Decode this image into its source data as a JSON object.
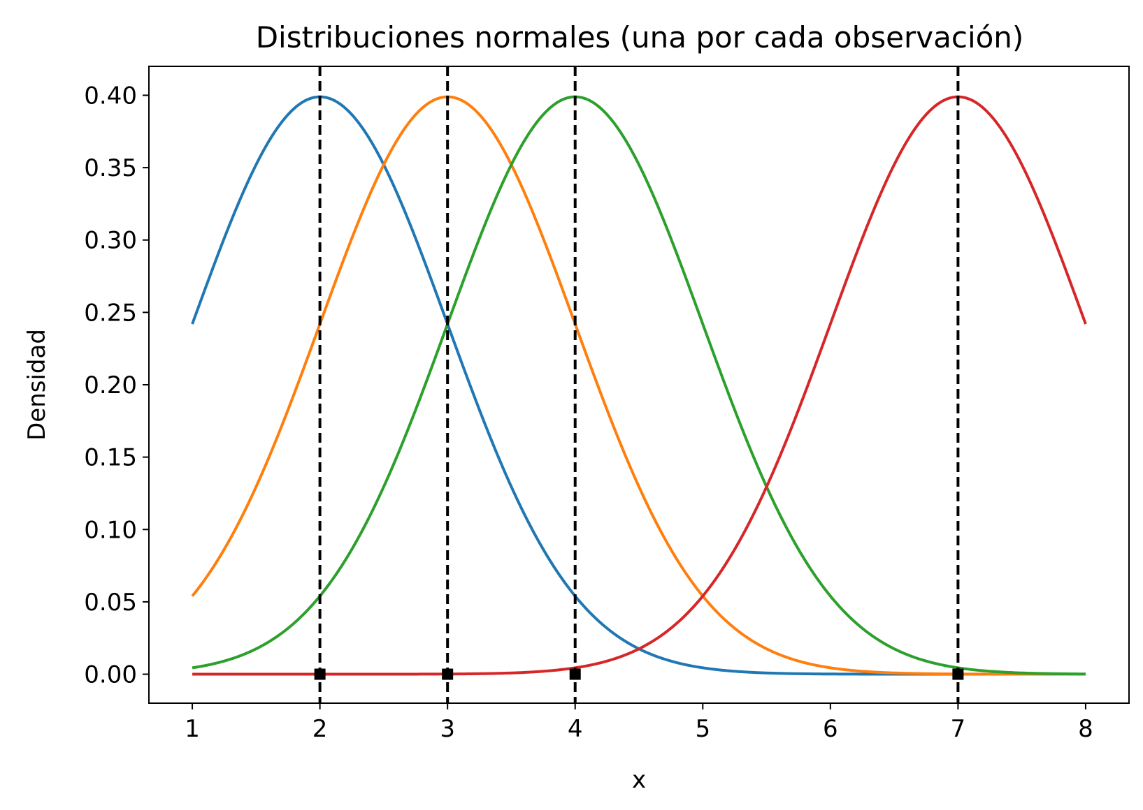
{
  "chart_data": {
    "type": "line",
    "title": "Distribuciones normales (una por cada observación)",
    "xlabel": "x",
    "ylabel": "Densidad",
    "xlim": [
      0.66,
      8.34
    ],
    "ylim": [
      -0.02,
      0.42
    ],
    "x_ticks": [
      "1",
      "2",
      "3",
      "4",
      "5",
      "6",
      "7",
      "8"
    ],
    "y_ticks": [
      "0.00",
      "0.05",
      "0.10",
      "0.15",
      "0.20",
      "0.25",
      "0.30",
      "0.35",
      "0.40"
    ],
    "grid": false,
    "legend": "none",
    "x_range": [
      1,
      8
    ],
    "sigma": 1,
    "observations": [
      2,
      3,
      4,
      7
    ],
    "series": [
      {
        "mean": 2,
        "color": "#1f77b4"
      },
      {
        "mean": 3,
        "color": "#ff7f0e"
      },
      {
        "mean": 4,
        "color": "#2ca02c"
      },
      {
        "mean": 7,
        "color": "#d62728"
      }
    ],
    "vline_style": "dashed",
    "vline_color": "#000000",
    "marker_shape": "square",
    "marker_color": "#000000"
  }
}
